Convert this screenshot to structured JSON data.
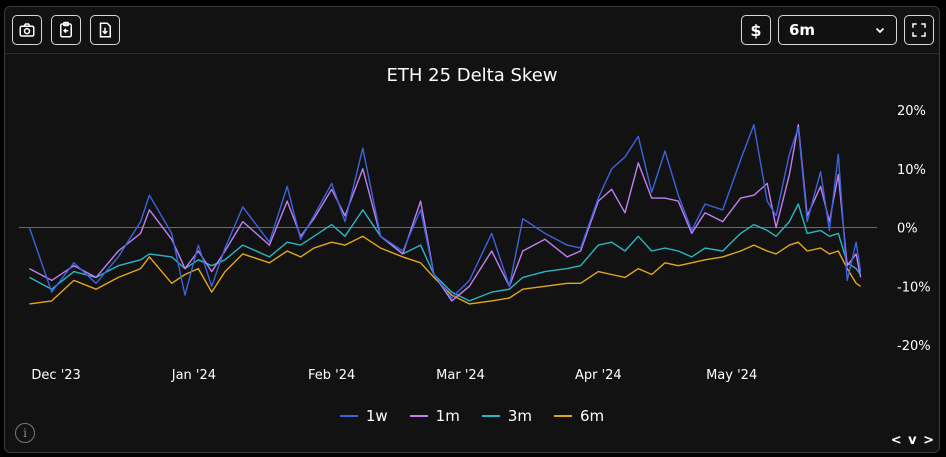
{
  "toolbar": {
    "screenshot_icon": "camera-icon",
    "copy_icon": "clipboard-copy-icon",
    "download_icon": "download-file-icon",
    "currency_label": "$",
    "period_select": {
      "value": "6m"
    },
    "fullscreen_icon": "fullscreen-icon"
  },
  "chart_data": {
    "type": "line",
    "title": "ETH 25 Delta Skew",
    "x_axis": {
      "type": "date",
      "range": [
        "2023-11-24",
        "2024-05-25"
      ],
      "ticks": [
        "Dec '23",
        "Jan '24",
        "Feb '24",
        "Mar '24",
        "Apr '24",
        "May '24"
      ]
    },
    "y_axis": {
      "range": [
        -20,
        20
      ],
      "ticks": [
        "20%",
        "10%",
        "0%",
        "-10%",
        "-20%"
      ],
      "zero_line": true
    },
    "legend": {
      "position": "bottom-center"
    },
    "series": [
      {
        "name": "1w",
        "color": "#3d63dd",
        "points": [
          [
            "2023-11-25",
            0.0
          ],
          [
            "2023-11-30",
            -11.0
          ],
          [
            "2023-12-05",
            -6.0
          ],
          [
            "2023-12-10",
            -9.5
          ],
          [
            "2023-12-15",
            -5.0
          ],
          [
            "2023-12-20",
            1.0
          ],
          [
            "2023-12-22",
            5.5
          ],
          [
            "2023-12-27",
            -1.0
          ],
          [
            "2023-12-30",
            -11.5
          ],
          [
            "2024-01-02",
            -3.0
          ],
          [
            "2024-01-05",
            -10.0
          ],
          [
            "2024-01-08",
            -3.5
          ],
          [
            "2024-01-12",
            3.5
          ],
          [
            "2024-01-18",
            -2.5
          ],
          [
            "2024-01-22",
            7.0
          ],
          [
            "2024-01-25",
            -2.0
          ],
          [
            "2024-01-28",
            2.0
          ],
          [
            "2024-02-01",
            7.5
          ],
          [
            "2024-02-04",
            1.0
          ],
          [
            "2024-02-08",
            13.5
          ],
          [
            "2024-02-12",
            -1.5
          ],
          [
            "2024-02-17",
            -4.0
          ],
          [
            "2024-02-21",
            3.0
          ],
          [
            "2024-02-24",
            -8.0
          ],
          [
            "2024-02-28",
            -12.0
          ],
          [
            "2024-03-03",
            -9.0
          ],
          [
            "2024-03-08",
            -1.0
          ],
          [
            "2024-03-12",
            -10.0
          ],
          [
            "2024-03-15",
            1.5
          ],
          [
            "2024-03-20",
            -1.0
          ],
          [
            "2024-03-25",
            -3.0
          ],
          [
            "2024-03-28",
            -3.5
          ],
          [
            "2024-04-01",
            5.0
          ],
          [
            "2024-04-04",
            10.0
          ],
          [
            "2024-04-07",
            12.0
          ],
          [
            "2024-04-10",
            15.5
          ],
          [
            "2024-04-13",
            6.0
          ],
          [
            "2024-04-16",
            13.0
          ],
          [
            "2024-04-19",
            5.5
          ],
          [
            "2024-04-22",
            -0.5
          ],
          [
            "2024-04-25",
            4.0
          ],
          [
            "2024-04-29",
            3.0
          ],
          [
            "2024-05-03",
            11.5
          ],
          [
            "2024-05-06",
            17.5
          ],
          [
            "2024-05-09",
            4.5
          ],
          [
            "2024-05-11",
            2.0
          ],
          [
            "2024-05-14",
            12.5
          ],
          [
            "2024-05-16",
            17.0
          ],
          [
            "2024-05-18",
            1.0
          ],
          [
            "2024-05-21",
            9.5
          ],
          [
            "2024-05-23",
            -0.5
          ],
          [
            "2024-05-25",
            12.5
          ],
          [
            "2024-05-27",
            -9.0
          ],
          [
            "2024-05-29",
            -2.5
          ],
          [
            "2024-05-30",
            -7.5
          ]
        ]
      },
      {
        "name": "1m",
        "color": "#c17ff0",
        "points": [
          [
            "2023-11-25",
            -7.0
          ],
          [
            "2023-11-30",
            -9.0
          ],
          [
            "2023-12-05",
            -6.5
          ],
          [
            "2023-12-10",
            -8.5
          ],
          [
            "2023-12-15",
            -4.0
          ],
          [
            "2023-12-20",
            -1.0
          ],
          [
            "2023-12-22",
            3.0
          ],
          [
            "2023-12-27",
            -2.0
          ],
          [
            "2023-12-30",
            -7.0
          ],
          [
            "2024-01-02",
            -4.0
          ],
          [
            "2024-01-05",
            -7.5
          ],
          [
            "2024-01-08",
            -4.0
          ],
          [
            "2024-01-12",
            1.0
          ],
          [
            "2024-01-18",
            -3.0
          ],
          [
            "2024-01-22",
            4.5
          ],
          [
            "2024-01-25",
            -1.5
          ],
          [
            "2024-01-28",
            1.5
          ],
          [
            "2024-02-01",
            6.5
          ],
          [
            "2024-02-04",
            2.0
          ],
          [
            "2024-02-08",
            10.0
          ],
          [
            "2024-02-12",
            -1.5
          ],
          [
            "2024-02-17",
            -4.5
          ],
          [
            "2024-02-21",
            4.5
          ],
          [
            "2024-02-24",
            -8.0
          ],
          [
            "2024-02-28",
            -12.5
          ],
          [
            "2024-03-03",
            -10.0
          ],
          [
            "2024-03-08",
            -4.0
          ],
          [
            "2024-03-12",
            -10.0
          ],
          [
            "2024-03-15",
            -4.0
          ],
          [
            "2024-03-20",
            -2.0
          ],
          [
            "2024-03-25",
            -5.0
          ],
          [
            "2024-03-28",
            -4.0
          ],
          [
            "2024-04-01",
            4.5
          ],
          [
            "2024-04-04",
            6.5
          ],
          [
            "2024-04-07",
            2.5
          ],
          [
            "2024-04-10",
            11.0
          ],
          [
            "2024-04-13",
            5.0
          ],
          [
            "2024-04-16",
            5.0
          ],
          [
            "2024-04-19",
            4.5
          ],
          [
            "2024-04-22",
            -1.0
          ],
          [
            "2024-04-25",
            2.5
          ],
          [
            "2024-04-29",
            1.0
          ],
          [
            "2024-05-03",
            5.0
          ],
          [
            "2024-05-06",
            5.5
          ],
          [
            "2024-05-09",
            7.5
          ],
          [
            "2024-05-11",
            0.0
          ],
          [
            "2024-05-14",
            9.0
          ],
          [
            "2024-05-16",
            17.5
          ],
          [
            "2024-05-18",
            2.0
          ],
          [
            "2024-05-21",
            7.0
          ],
          [
            "2024-05-23",
            1.0
          ],
          [
            "2024-05-25",
            9.0
          ],
          [
            "2024-05-27",
            -6.5
          ],
          [
            "2024-05-29",
            -4.5
          ],
          [
            "2024-05-30",
            -8.5
          ]
        ]
      },
      {
        "name": "3m",
        "color": "#2bb5c3",
        "points": [
          [
            "2023-11-25",
            -8.5
          ],
          [
            "2023-11-30",
            -10.5
          ],
          [
            "2023-12-05",
            -7.5
          ],
          [
            "2023-12-10",
            -8.5
          ],
          [
            "2023-12-15",
            -6.5
          ],
          [
            "2023-12-20",
            -5.5
          ],
          [
            "2023-12-22",
            -4.5
          ],
          [
            "2023-12-27",
            -5.0
          ],
          [
            "2023-12-30",
            -7.0
          ],
          [
            "2024-01-02",
            -5.5
          ],
          [
            "2024-01-05",
            -6.5
          ],
          [
            "2024-01-08",
            -5.5
          ],
          [
            "2024-01-12",
            -3.0
          ],
          [
            "2024-01-18",
            -5.0
          ],
          [
            "2024-01-22",
            -2.5
          ],
          [
            "2024-01-25",
            -3.0
          ],
          [
            "2024-01-28",
            -1.5
          ],
          [
            "2024-02-01",
            0.5
          ],
          [
            "2024-02-04",
            -1.5
          ],
          [
            "2024-02-08",
            3.0
          ],
          [
            "2024-02-12",
            -1.5
          ],
          [
            "2024-02-17",
            -4.5
          ],
          [
            "2024-02-21",
            -3.0
          ],
          [
            "2024-02-24",
            -8.0
          ],
          [
            "2024-02-28",
            -11.0
          ],
          [
            "2024-03-03",
            -12.5
          ],
          [
            "2024-03-08",
            -11.0
          ],
          [
            "2024-03-12",
            -10.5
          ],
          [
            "2024-03-15",
            -8.5
          ],
          [
            "2024-03-20",
            -7.5
          ],
          [
            "2024-03-25",
            -7.0
          ],
          [
            "2024-03-28",
            -6.5
          ],
          [
            "2024-04-01",
            -3.0
          ],
          [
            "2024-04-04",
            -2.5
          ],
          [
            "2024-04-07",
            -4.0
          ],
          [
            "2024-04-10",
            -1.5
          ],
          [
            "2024-04-13",
            -4.0
          ],
          [
            "2024-04-16",
            -3.5
          ],
          [
            "2024-04-19",
            -4.0
          ],
          [
            "2024-04-22",
            -5.0
          ],
          [
            "2024-04-25",
            -3.5
          ],
          [
            "2024-04-29",
            -4.0
          ],
          [
            "2024-05-03",
            -1.0
          ],
          [
            "2024-05-06",
            0.5
          ],
          [
            "2024-05-09",
            -0.5
          ],
          [
            "2024-05-11",
            -1.5
          ],
          [
            "2024-05-14",
            1.0
          ],
          [
            "2024-05-16",
            4.0
          ],
          [
            "2024-05-18",
            -1.0
          ],
          [
            "2024-05-21",
            -0.5
          ],
          [
            "2024-05-23",
            -1.5
          ],
          [
            "2024-05-25",
            -1.0
          ],
          [
            "2024-05-27",
            -6.0
          ],
          [
            "2024-05-29",
            -7.0
          ],
          [
            "2024-05-30",
            -8.0
          ]
        ]
      },
      {
        "name": "6m",
        "color": "#e3a71a",
        "points": [
          [
            "2023-11-25",
            -13.0
          ],
          [
            "2023-11-30",
            -12.5
          ],
          [
            "2023-12-05",
            -9.0
          ],
          [
            "2023-12-10",
            -10.5
          ],
          [
            "2023-12-15",
            -8.5
          ],
          [
            "2023-12-20",
            -7.0
          ],
          [
            "2023-12-22",
            -5.0
          ],
          [
            "2023-12-27",
            -9.5
          ],
          [
            "2023-12-30",
            -8.0
          ],
          [
            "2024-01-02",
            -7.0
          ],
          [
            "2024-01-05",
            -11.0
          ],
          [
            "2024-01-08",
            -7.5
          ],
          [
            "2024-01-12",
            -4.5
          ],
          [
            "2024-01-18",
            -6.0
          ],
          [
            "2024-01-22",
            -4.0
          ],
          [
            "2024-01-25",
            -5.0
          ],
          [
            "2024-01-28",
            -3.5
          ],
          [
            "2024-02-01",
            -2.5
          ],
          [
            "2024-02-04",
            -3.0
          ],
          [
            "2024-02-08",
            -1.5
          ],
          [
            "2024-02-12",
            -3.5
          ],
          [
            "2024-02-17",
            -5.0
          ],
          [
            "2024-02-21",
            -6.0
          ],
          [
            "2024-02-24",
            -8.5
          ],
          [
            "2024-02-28",
            -11.5
          ],
          [
            "2024-03-03",
            -13.0
          ],
          [
            "2024-03-08",
            -12.5
          ],
          [
            "2024-03-12",
            -12.0
          ],
          [
            "2024-03-15",
            -10.5
          ],
          [
            "2024-03-20",
            -10.0
          ],
          [
            "2024-03-25",
            -9.5
          ],
          [
            "2024-03-28",
            -9.5
          ],
          [
            "2024-04-01",
            -7.5
          ],
          [
            "2024-04-04",
            -8.0
          ],
          [
            "2024-04-07",
            -8.5
          ],
          [
            "2024-04-10",
            -7.0
          ],
          [
            "2024-04-13",
            -8.0
          ],
          [
            "2024-04-16",
            -6.0
          ],
          [
            "2024-04-19",
            -6.5
          ],
          [
            "2024-04-22",
            -6.0
          ],
          [
            "2024-04-25",
            -5.5
          ],
          [
            "2024-04-29",
            -5.0
          ],
          [
            "2024-05-03",
            -4.0
          ],
          [
            "2024-05-06",
            -3.0
          ],
          [
            "2024-05-09",
            -4.0
          ],
          [
            "2024-05-11",
            -4.5
          ],
          [
            "2024-05-14",
            -3.0
          ],
          [
            "2024-05-16",
            -2.5
          ],
          [
            "2024-05-18",
            -4.0
          ],
          [
            "2024-05-21",
            -3.5
          ],
          [
            "2024-05-23",
            -4.5
          ],
          [
            "2024-05-25",
            -4.0
          ],
          [
            "2024-05-27",
            -7.0
          ],
          [
            "2024-05-29",
            -9.5
          ],
          [
            "2024-05-30",
            -10.0
          ]
        ]
      }
    ]
  },
  "footer": {
    "info_icon": "info-icon",
    "nav_label": "< v >"
  }
}
